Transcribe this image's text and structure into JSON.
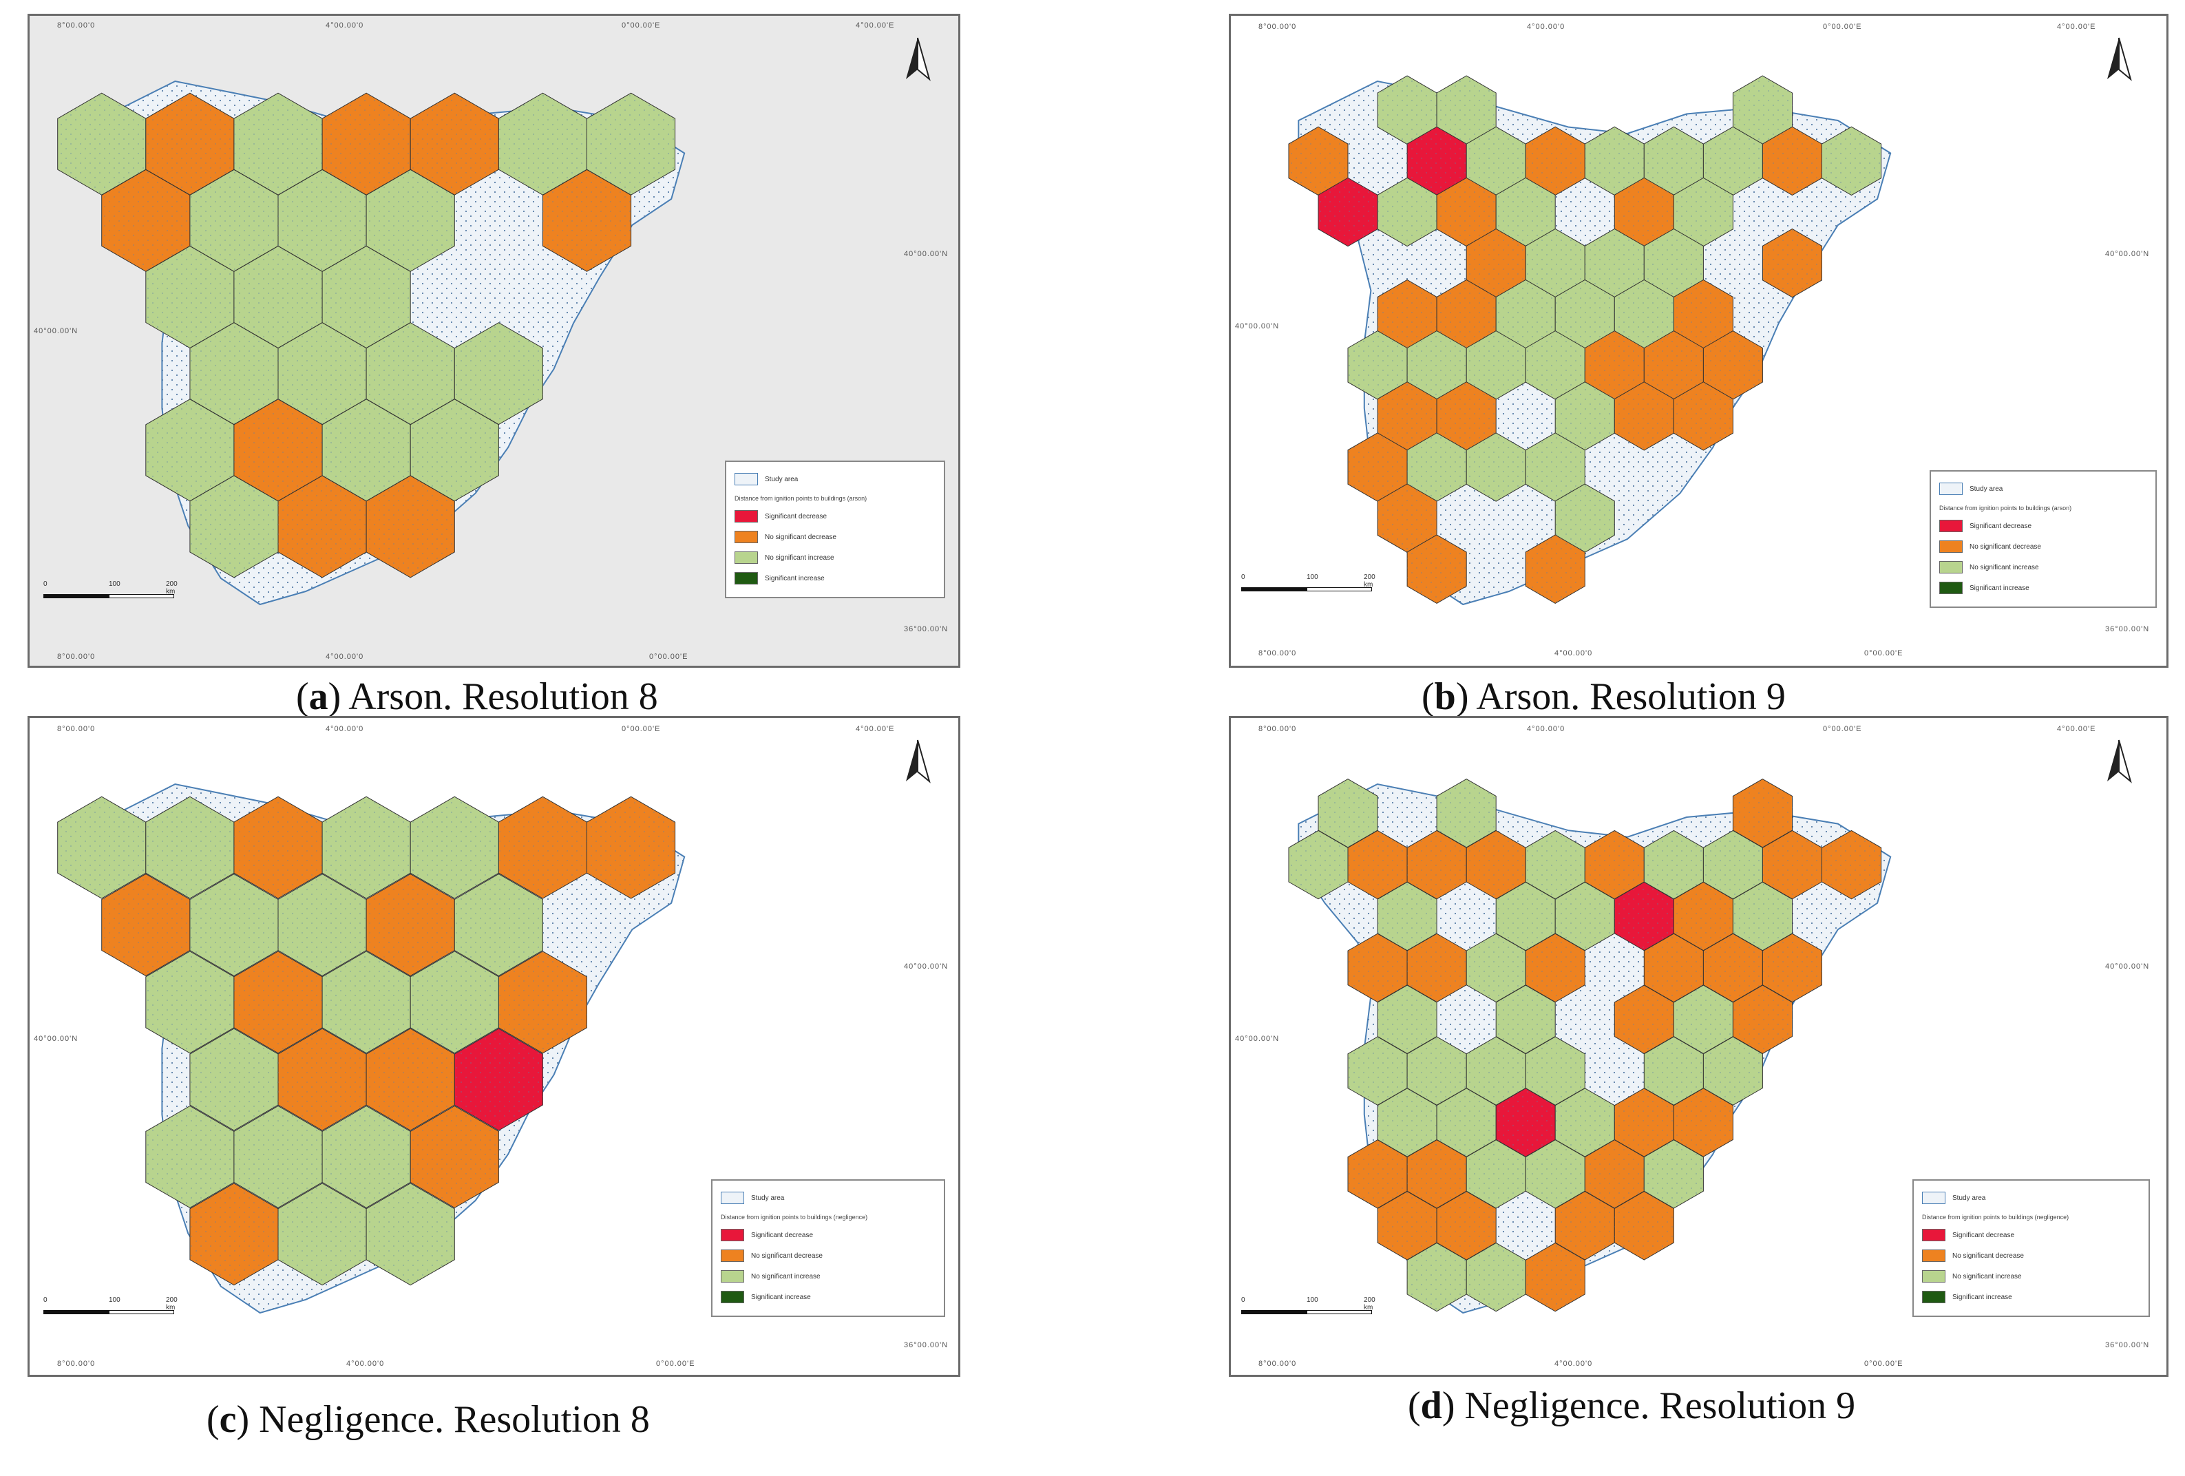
{
  "panels": [
    {
      "id": "a",
      "caption_letter": "a",
      "caption_text": ") Arson. Resolution 8",
      "top_coords": [
        "8°00.00'0",
        "4°00.00'0",
        "0°00.00'E",
        "4°00.00'E"
      ],
      "bottom_coords": [
        "8°00.00'0",
        "4°00.00'0",
        "0°00.00'E"
      ],
      "left_coord": "40°00.00'N",
      "right_coords": [
        "40°00.00'N",
        "36°00.00'N"
      ],
      "legend": {
        "study_area": "Study area",
        "title": "Distance from ignition points to buildings (arson)",
        "items": [
          "Significant decrease",
          "No significant decrease",
          "No significant increase",
          "Significant increase"
        ]
      },
      "scale": [
        "0",
        "100",
        "200 km"
      ]
    },
    {
      "id": "b",
      "caption_letter": "b",
      "caption_text": ") Arson. Resolution 9",
      "top_coords": [
        "8°00.00'0",
        "4°00.00'0",
        "0°00.00'E",
        "4°00.00'E"
      ],
      "bottom_coords": [
        "8°00.00'0",
        "4°00.00'0",
        "0°00.00'E"
      ],
      "left_coord": "40°00.00'N",
      "right_coords": [
        "40°00.00'N",
        "36°00.00'N"
      ],
      "legend": {
        "study_area": "Study area",
        "title": "Distance from ignition points to buildings (arson)",
        "items": [
          "Significant decrease",
          "No significant decrease",
          "No significant increase",
          "Significant increase"
        ]
      },
      "scale": [
        "0",
        "100",
        "200 km"
      ]
    },
    {
      "id": "c",
      "caption_letter": "c",
      "caption_text": ") Negligence. Resolution 8",
      "top_coords": [
        "8°00.00'0",
        "4°00.00'0",
        "0°00.00'E",
        "4°00.00'E"
      ],
      "bottom_coords": [
        "8°00.00'0",
        "4°00.00'0",
        "0°00.00'E"
      ],
      "left_coord": "40°00.00'N",
      "right_coords": [
        "40°00.00'N",
        "36°00.00'N"
      ],
      "legend": {
        "study_area": "Study area",
        "title": "Distance from ignition points to buildings (negligence)",
        "items": [
          "Significant decrease",
          "No significant decrease",
          "No significant increase",
          "Significant increase"
        ]
      },
      "scale": [
        "0",
        "100",
        "200 km"
      ]
    },
    {
      "id": "d",
      "caption_letter": "d",
      "caption_text": ") Negligence. Resolution 9",
      "top_coords": [
        "8°00.00'0",
        "4°00.00'0",
        "0°00.00'E",
        "4°00.00'E"
      ],
      "bottom_coords": [
        "8°00.00'0",
        "4°00.00'0",
        "0°00.00'E"
      ],
      "left_coord": "40°00.00'N",
      "right_coords": [
        "40°00.00'N",
        "36°00.00'N"
      ],
      "legend": {
        "study_area": "Study area",
        "title": "Distance from ignition points to buildings (negligence)",
        "items": [
          "Significant decrease",
          "No significant decrease",
          "No significant increase",
          "Significant increase"
        ]
      },
      "scale": [
        "0",
        "100",
        "200 km"
      ]
    }
  ],
  "colors": {
    "significant_decrease": "#e8173a",
    "no_significant_decrease": "#ee8220",
    "no_significant_increase": "#b8d48e",
    "significant_increase": "#1f5a12",
    "study_area": "#eef3f8",
    "outline": "#4a7fb5"
  }
}
